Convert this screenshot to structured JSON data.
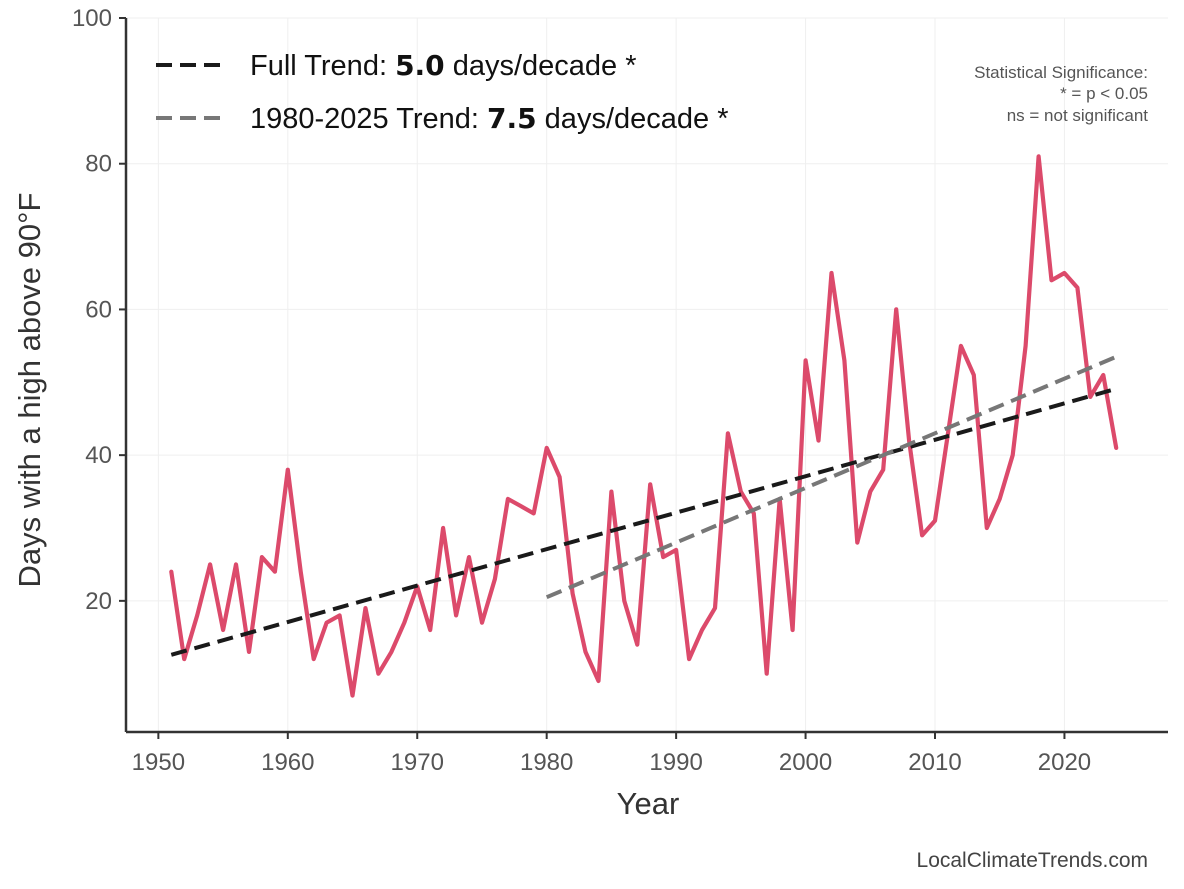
{
  "chart_data": {
    "type": "line",
    "xlabel": "Year",
    "ylabel": "Days with a high above 90°F",
    "xlim": [
      1947.5,
      2028
    ],
    "ylim": [
      2,
      100
    ],
    "xticks": [
      1950,
      1960,
      1970,
      1980,
      1990,
      2000,
      2010,
      2020
    ],
    "yticks": [
      20,
      40,
      60,
      80,
      100
    ],
    "grid": true,
    "legend_position": "top-left",
    "series": [
      {
        "name": "Days above 90°F",
        "color": "#dc4a6b",
        "x": [
          1951,
          1952,
          1953,
          1954,
          1955,
          1956,
          1957,
          1958,
          1959,
          1960,
          1961,
          1962,
          1963,
          1964,
          1965,
          1966,
          1967,
          1968,
          1969,
          1970,
          1971,
          1972,
          1973,
          1974,
          1975,
          1976,
          1977,
          1978,
          1979,
          1980,
          1981,
          1982,
          1983,
          1984,
          1985,
          1986,
          1987,
          1988,
          1989,
          1990,
          1991,
          1992,
          1993,
          1994,
          1995,
          1996,
          1997,
          1998,
          1999,
          2000,
          2001,
          2002,
          2003,
          2004,
          2005,
          2006,
          2007,
          2008,
          2009,
          2010,
          2011,
          2012,
          2013,
          2014,
          2015,
          2016,
          2017,
          2018,
          2019,
          2020,
          2021,
          2022,
          2023,
          2024
        ],
        "values": [
          24,
          12,
          18,
          25,
          16,
          25,
          13,
          26,
          24,
          38,
          24,
          12,
          17,
          18,
          7,
          19,
          10,
          13,
          17,
          22,
          16,
          30,
          18,
          26,
          17,
          23,
          34,
          33,
          32,
          41,
          37,
          21,
          13,
          9,
          35,
          20,
          14,
          36,
          26,
          27,
          12,
          16,
          19,
          43,
          35,
          32,
          10,
          34,
          16,
          53,
          42,
          65,
          53,
          28,
          35,
          38,
          60,
          42,
          29,
          31,
          43,
          55,
          51,
          30,
          34,
          40,
          55,
          81,
          64,
          65,
          63,
          48,
          51,
          41
        ]
      },
      {
        "name": "Full Trend",
        "color": "#1a1a1a",
        "dashed": true,
        "x": [
          1951,
          2024
        ],
        "values": [
          12.6,
          49.1
        ]
      },
      {
        "name": "1980-2025 Trend",
        "color": "#777777",
        "dashed": true,
        "x": [
          1980,
          2024
        ],
        "values": [
          20.5,
          53.5
        ]
      }
    ],
    "legend": [
      {
        "prefix": "Full Trend: ",
        "value": "5.0",
        "suffix": " days/decade *",
        "color": "#1a1a1a"
      },
      {
        "prefix": "1980-2025 Trend: ",
        "value": "7.5",
        "suffix": " days/decade *",
        "color": "#777777"
      }
    ],
    "annotations": {
      "significance": [
        "Statistical Significance:",
        "* = p < 0.05",
        "ns = not significant"
      ],
      "credit": "LocalClimateTrends.com"
    }
  }
}
